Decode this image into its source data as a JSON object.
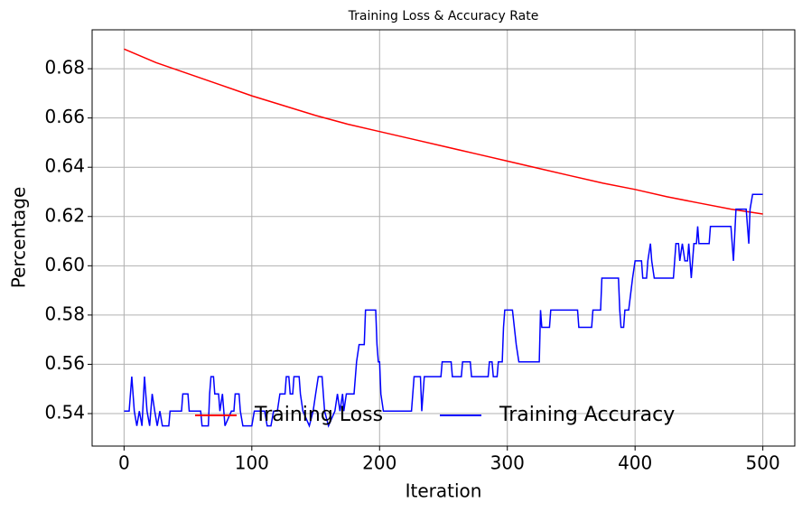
{
  "chart_data": {
    "type": "line",
    "title": "Training Loss & Accuracy Rate",
    "x_label": "Iteration",
    "y_label": "Percentage",
    "xlim": [
      -25,
      525
    ],
    "ylim": [
      0.5268,
      0.6958
    ],
    "xticks": [
      0,
      100,
      200,
      300,
      400,
      500
    ],
    "yticks": [
      0.54,
      0.56,
      0.58,
      {
        "value": 0.6,
        "label": "0.60"
      },
      0.62,
      0.64,
      0.66,
      0.68
    ],
    "grid": true,
    "legend": "lower center",
    "series": [
      {
        "name": "Training Loss",
        "color": "#ff0000",
        "x": [
          0,
          25,
          50,
          75,
          100,
          125,
          150,
          175,
          200,
          225,
          250,
          275,
          300,
          325,
          350,
          375,
          400,
          425,
          450,
          475,
          500
        ],
        "values": [
          0.688,
          0.6825,
          0.678,
          0.6735,
          0.669,
          0.665,
          0.661,
          0.6575,
          0.6545,
          0.6515,
          0.6485,
          0.6455,
          0.6425,
          0.6395,
          0.6365,
          0.6335,
          0.631,
          0.628,
          0.6255,
          0.623,
          0.621
        ]
      },
      {
        "name": "Training Accuracy",
        "color": "#0000ff",
        "x": [
          0,
          4,
          6,
          8,
          10,
          12,
          14,
          16,
          18,
          20,
          22,
          24,
          26,
          28,
          30,
          35,
          36,
          45,
          46,
          50,
          51,
          60,
          61,
          66,
          67,
          68,
          70,
          71,
          74,
          75,
          77,
          79,
          84,
          86,
          87,
          90,
          91,
          93,
          100,
          102,
          110,
          112,
          115,
          117,
          120,
          122,
          126,
          127,
          129,
          130,
          132,
          133,
          137,
          138,
          140,
          145,
          148,
          150,
          152,
          155,
          157,
          160,
          165,
          167,
          169,
          171,
          172,
          174,
          180,
          182,
          184,
          188,
          189,
          197,
          198,
          199,
          200,
          201,
          203,
          225,
          227,
          232,
          233,
          235,
          248,
          249,
          256,
          257,
          264,
          265,
          271,
          272,
          285,
          286,
          288,
          289,
          292,
          293,
          296,
          297,
          298,
          304,
          307,
          309,
          325,
          326,
          327,
          333,
          334,
          355,
          356,
          366,
          367,
          373,
          374,
          387,
          388,
          389,
          391,
          392,
          395,
          398,
          400,
          405,
          406,
          409,
          410,
          412,
          413,
          415,
          430,
          432,
          434,
          435,
          437,
          439,
          441,
          442,
          444,
          446,
          448,
          449,
          450,
          458,
          459,
          475,
          477,
          479,
          487,
          489,
          490,
          492,
          500
        ],
        "values": [
          0.541,
          0.541,
          0.555,
          0.541,
          0.535,
          0.541,
          0.535,
          0.555,
          0.541,
          0.535,
          0.548,
          0.541,
          0.535,
          0.541,
          0.535,
          0.535,
          0.541,
          0.541,
          0.548,
          0.548,
          0.541,
          0.541,
          0.535,
          0.535,
          0.548,
          0.555,
          0.555,
          0.548,
          0.548,
          0.541,
          0.548,
          0.535,
          0.541,
          0.541,
          0.548,
          0.548,
          0.541,
          0.535,
          0.535,
          0.541,
          0.541,
          0.535,
          0.535,
          0.541,
          0.541,
          0.548,
          0.548,
          0.555,
          0.555,
          0.548,
          0.548,
          0.555,
          0.555,
          0.548,
          0.541,
          0.535,
          0.541,
          0.548,
          0.555,
          0.555,
          0.541,
          0.535,
          0.541,
          0.548,
          0.541,
          0.548,
          0.541,
          0.548,
          0.548,
          0.561,
          0.568,
          0.568,
          0.582,
          0.582,
          0.568,
          0.561,
          0.561,
          0.548,
          0.541,
          0.541,
          0.555,
          0.555,
          0.541,
          0.555,
          0.555,
          0.561,
          0.561,
          0.555,
          0.555,
          0.561,
          0.561,
          0.555,
          0.555,
          0.561,
          0.561,
          0.555,
          0.555,
          0.561,
          0.561,
          0.575,
          0.582,
          0.582,
          0.568,
          0.561,
          0.561,
          0.582,
          0.575,
          0.575,
          0.582,
          0.582,
          0.575,
          0.575,
          0.582,
          0.582,
          0.595,
          0.595,
          0.582,
          0.575,
          0.575,
          0.582,
          0.582,
          0.595,
          0.602,
          0.602,
          0.595,
          0.595,
          0.602,
          0.609,
          0.602,
          0.595,
          0.595,
          0.609,
          0.609,
          0.602,
          0.609,
          0.602,
          0.602,
          0.609,
          0.595,
          0.609,
          0.609,
          0.616,
          0.609,
          0.609,
          0.616,
          0.616,
          0.602,
          0.623,
          0.623,
          0.609,
          0.623,
          0.629,
          0.629
        ]
      }
    ]
  }
}
